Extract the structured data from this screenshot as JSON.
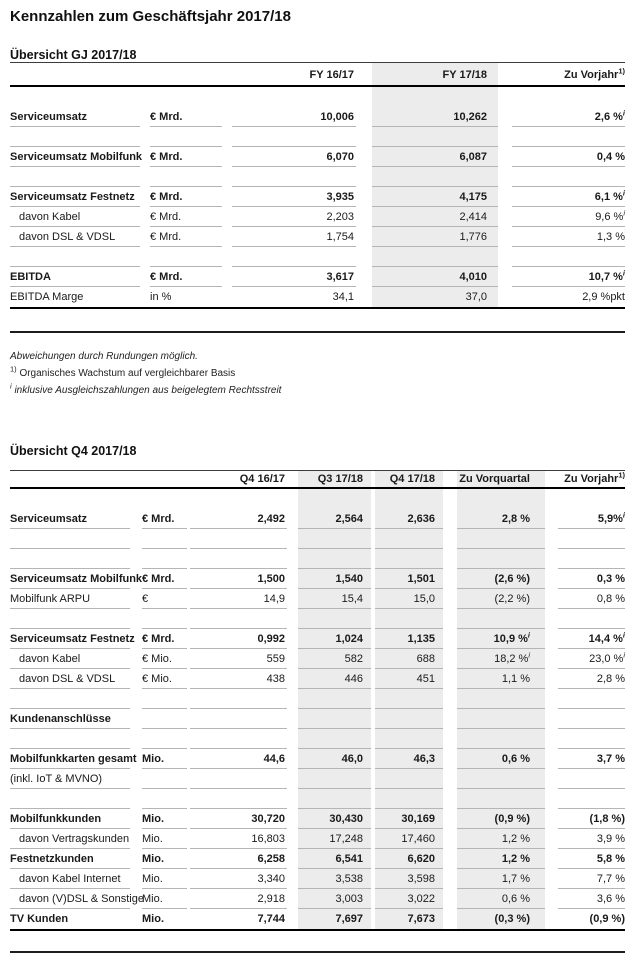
{
  "title": "Kennzahlen zum Geschäftsjahr 2017/18",
  "colors": {
    "band": "#ececec"
  },
  "footnotes": {
    "rounding": "Abweichungen durch Rundungen möglich.",
    "organic_marker": "1)",
    "organic": "Organisches Wachstum auf vergleichbarer Basis",
    "settlement_marker": "i",
    "settlement": "inklusive Ausgleichszahlungen aus beigelegtem Rechtsstreit"
  },
  "table_gj": {
    "section_title": "Übersicht GJ 2017/18",
    "columns": {
      "c1": "FY 16/17",
      "c2": "FY 17/18",
      "c3": "Zu Vorjahr",
      "c3_sup": "1)"
    },
    "rows": [
      {},
      {
        "label": "Serviceumsatz",
        "unit": "€ Mrd.",
        "c1": "10,006",
        "c2": "10,262",
        "c3": "2,6 %",
        "c3s": "i"
      },
      {},
      {
        "label": "Serviceumsatz Mobilfunk",
        "unit": "€ Mrd.",
        "c1": "6,070",
        "c2": "6,087",
        "c3": "0,4 %"
      },
      {},
      {
        "label": "Serviceumsatz Festnetz",
        "unit": "€ Mrd.",
        "c1": "3,935",
        "c2": "4,175",
        "c3": "6,1 %",
        "c3s": "i"
      },
      {
        "label": "davon Kabel",
        "unit": "€ Mrd.",
        "c1": "2,203",
        "c2": "2,414",
        "c3": "9,6 %",
        "c3s": "i"
      },
      {
        "label": "davon DSL & VDSL",
        "unit": "€ Mrd.",
        "c1": "1,754",
        "c2": "1,776",
        "c3": "1,3 %"
      },
      {},
      {
        "label": "EBITDA",
        "unit": "€ Mrd.",
        "c1": "3,617",
        "c2": "4,010",
        "c3": "10,7 %",
        "c3s": "i"
      },
      {
        "label": "EBITDA Marge",
        "unit": "in %",
        "c1": "34,1",
        "c2": "37,0",
        "c3": "2,9 %pkt"
      }
    ]
  },
  "table_q4": {
    "section_title": "Übersicht Q4 2017/18",
    "columns": {
      "c1": "Q4 16/17",
      "c2": "Q3 17/18",
      "c3": "Q4 17/18",
      "c4": "Zu Vorquartal",
      "c5": "Zu Vorjahr",
      "c5_sup": "1)"
    },
    "rows": [
      {},
      {
        "label": "Serviceumsatz",
        "unit": "€ Mrd.",
        "c1": "2,492",
        "c2": "2,564",
        "c3": "2,636",
        "c4": "2,8 %",
        "c5": "5,9%",
        "c5s": "i"
      },
      {},
      {},
      {
        "label": "Serviceumsatz Mobilfunk",
        "unit": "€ Mrd.",
        "c1": "1,500",
        "c2": "1,540",
        "c3": "1,501",
        "c4": "(2,6 %)",
        "c5": "0,3 %"
      },
      {
        "label": "Mobilfunk ARPU",
        "unit": "€",
        "c1": "14,9",
        "c2": "15,4",
        "c3": "15,0",
        "c4": "(2,2 %)",
        "c5": "0,8 %"
      },
      {},
      {
        "label": "Serviceumsatz Festnetz",
        "unit": "€ Mrd.",
        "c1": "0,992",
        "c2": "1,024",
        "c3": "1,135",
        "c4": "10,9 %",
        "c4s": "i",
        "c5": "14,4 %",
        "c5s": "i"
      },
      {
        "label": "davon Kabel",
        "unit": "€ Mio.",
        "c1": "559",
        "c2": "582",
        "c3": "688",
        "c4": "18,2 %",
        "c4s": "i",
        "c5": "23,0 %",
        "c5s": "i"
      },
      {
        "label": "davon DSL & VDSL",
        "unit": "€ Mio.",
        "c1": "438",
        "c2": "446",
        "c3": "451",
        "c4": "1,1 %",
        "c5": "2,8 %"
      },
      {},
      {
        "label": "Kundenanschlüsse"
      },
      {},
      {
        "label": "Mobilfunkkarten gesamt",
        "unit": "Mio.",
        "c1": "44,6",
        "c2": "46,0",
        "c3": "46,3",
        "c4": "0,6 %",
        "c5": "3,7 %"
      },
      {
        "label": "(inkl. IoT & MVNO)"
      },
      {},
      {
        "label": "Mobilfunkkunden",
        "unit": "Mio.",
        "c1": "30,720",
        "c2": "30,430",
        "c3": "30,169",
        "c4": "(0,9 %)",
        "c5": "(1,8 %)"
      },
      {
        "label": "davon Vertragskunden",
        "unit": "Mio.",
        "c1": "16,803",
        "c2": "17,248",
        "c3": "17,460",
        "c4": "1,2 %",
        "c5": "3,9 %"
      },
      {
        "label": "Festnetzkunden",
        "unit": "Mio.",
        "c1": "6,258",
        "c2": "6,541",
        "c3": "6,620",
        "c4": "1,2 %",
        "c5": "5,8 %"
      },
      {
        "label": "davon Kabel Internet",
        "unit": "Mio.",
        "c1": "3,340",
        "c2": "3,538",
        "c3": "3,598",
        "c4": "1,7 %",
        "c5": "7,7 %"
      },
      {
        "label": "davon (V)DSL & Sonstige",
        "unit": "Mio.",
        "c1": "2,918",
        "c2": "3,003",
        "c3": "3,022",
        "c4": "0,6 %",
        "c5": "3,6 %"
      },
      {
        "label": "TV Kunden",
        "unit": "Mio.",
        "c1": "7,744",
        "c2": "7,697",
        "c3": "7,673",
        "c4": "(0,3 %)",
        "c5": "(0,9 %)"
      }
    ]
  }
}
